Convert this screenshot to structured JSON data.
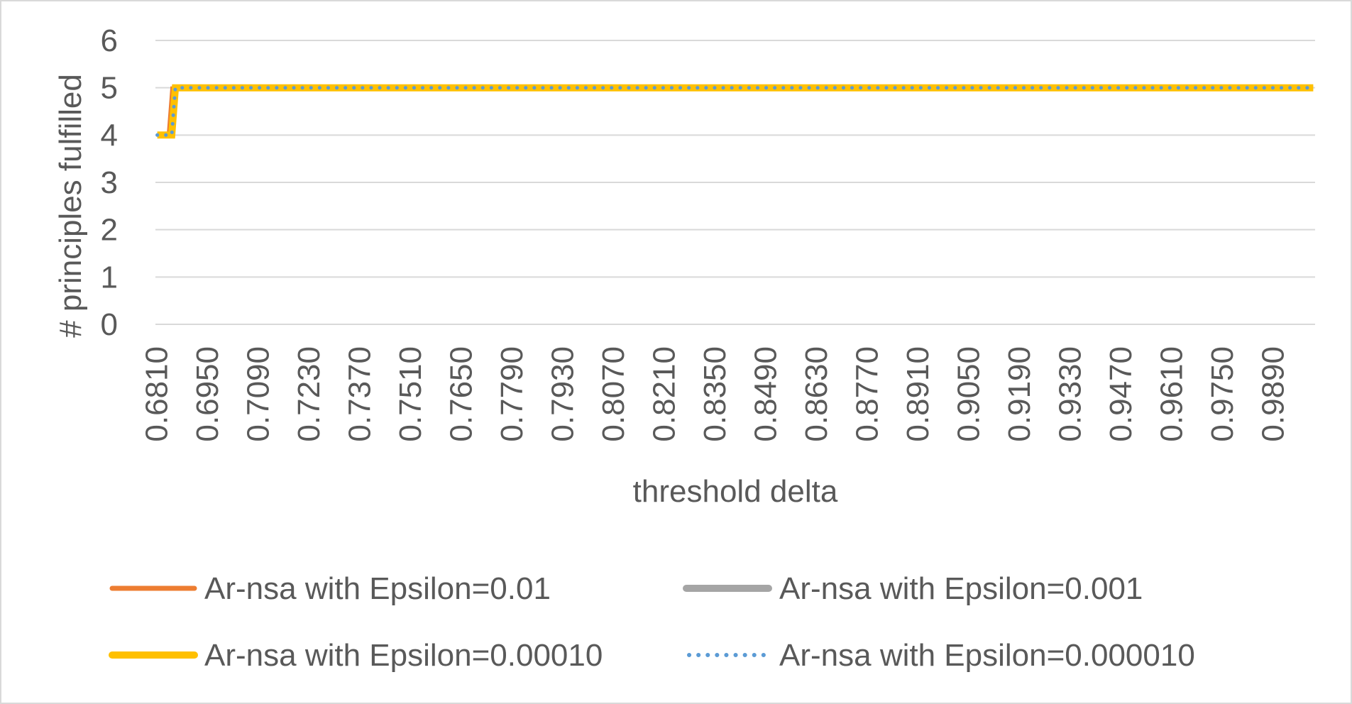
{
  "chart_data": {
    "type": "line",
    "title": "",
    "xlabel": "threshold delta",
    "ylabel": "# principles fulfilled",
    "ylim": [
      0,
      6
    ],
    "yticks": [
      "0",
      "1",
      "2",
      "3",
      "4",
      "5",
      "6"
    ],
    "x_range": [
      0.681,
      1.0
    ],
    "x_step": 0.001,
    "x_tick_labels": [
      "0.6810",
      "0.6950",
      "0.7090",
      "0.7230",
      "0.7370",
      "0.7510",
      "0.7650",
      "0.7790",
      "0.7930",
      "0.8070",
      "0.8210",
      "0.8350",
      "0.8490",
      "0.8630",
      "0.8770",
      "0.8910",
      "0.9050",
      "0.9190",
      "0.9330",
      "0.9470",
      "0.9610",
      "0.9750",
      "0.9890"
    ],
    "grid": true,
    "legend_position": "bottom",
    "series": [
      {
        "name": "Ar-nsa with Epsilon=0.01",
        "color": "#ED7D31",
        "style": "solid",
        "points": [
          [
            0.681,
            4
          ],
          [
            0.684,
            4
          ],
          [
            0.685,
            5
          ],
          [
            1.0,
            5
          ]
        ]
      },
      {
        "name": "Ar-nsa with Epsilon=0.001",
        "color": "#A5A5A5",
        "style": "solid",
        "points": [
          [
            0.681,
            4
          ],
          [
            0.685,
            4
          ],
          [
            0.686,
            5
          ],
          [
            1.0,
            5
          ]
        ]
      },
      {
        "name": "Ar-nsa with Epsilon=0.00010",
        "color": "#FFC000",
        "style": "solid-thick",
        "points": [
          [
            0.681,
            4
          ],
          [
            0.685,
            4
          ],
          [
            0.686,
            5
          ],
          [
            1.0,
            5
          ]
        ]
      },
      {
        "name": "Ar-nsa with Epsilon=0.000010",
        "color": "#5B9BD5",
        "style": "dotted",
        "points": [
          [
            0.681,
            4
          ],
          [
            0.685,
            4
          ],
          [
            0.686,
            5
          ],
          [
            1.0,
            5
          ]
        ]
      }
    ]
  }
}
